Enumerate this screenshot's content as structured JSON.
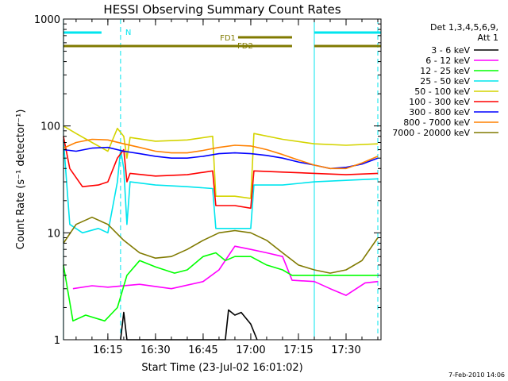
{
  "chart_data": {
    "type": "line",
    "title": "HESSI Observing Summary Count Rates",
    "xlabel": "Start Time (23-Jul-02 16:01:02)",
    "ylabel": "Count Rate (s⁻¹ detector⁻¹)",
    "y_scale": "log",
    "ylim": [
      1,
      1000
    ],
    "xlim": [
      "16:01:02",
      "17:41:00"
    ],
    "x_ticks": [
      "16:15",
      "16:30",
      "16:45",
      "17:00",
      "17:15",
      "17:30"
    ],
    "y_ticks": [
      "1",
      "10",
      "100",
      "1000"
    ],
    "legend_title": [
      "Det 1,3,4,5,6,9,",
      "Att 1"
    ],
    "legend_position": "right",
    "footer": "7-Feb-2010 14:06",
    "flags": [
      {
        "label": "N",
        "color": "#00e5ee",
        "intervals": [
          [
            "16:01",
            "16:13"
          ],
          [
            "17:20",
            "17:41"
          ]
        ]
      },
      {
        "label": "FD1",
        "color": "#807a00",
        "intervals": [
          [
            "16:56",
            "17:13"
          ]
        ]
      },
      {
        "label": "FD2",
        "color": "#807a00",
        "intervals": [
          [
            "16:01",
            "17:13"
          ],
          [
            "17:20",
            "17:41"
          ]
        ]
      }
    ],
    "vlines_solid": [
      "16:01",
      "17:20"
    ],
    "vlines_dashed": [
      "16:19",
      "17:40"
    ],
    "series": [
      {
        "name": "3 - 6 keV",
        "color": "#000000",
        "points": [
          [
            "16:19",
            1
          ],
          [
            "16:20",
            1.8
          ],
          [
            "16:21",
            1
          ],
          [
            "16:52",
            1
          ],
          [
            "16:53",
            1.9
          ],
          [
            "16:55",
            1.7
          ],
          [
            "16:57",
            1.8
          ],
          [
            "17:00",
            1.4
          ],
          [
            "17:02",
            1
          ]
        ]
      },
      {
        "name": "6 - 12 keV",
        "color": "#ff00ff",
        "points": [
          [
            "16:04",
            3
          ],
          [
            "16:10",
            3.2
          ],
          [
            "16:15",
            3.1
          ],
          [
            "16:25",
            3.3
          ],
          [
            "16:35",
            3
          ],
          [
            "16:45",
            3.5
          ],
          [
            "16:50",
            4.5
          ],
          [
            "16:55",
            7.5
          ],
          [
            "17:00",
            7
          ],
          [
            "17:05",
            6.5
          ],
          [
            "17:10",
            6
          ],
          [
            "17:13",
            3.6
          ],
          [
            "17:20",
            3.5
          ],
          [
            "17:25",
            3
          ],
          [
            "17:30",
            2.6
          ],
          [
            "17:36",
            3.4
          ],
          [
            "17:40",
            3.5
          ]
        ]
      },
      {
        "name": "12 - 25 keV",
        "color": "#00ff00",
        "points": [
          [
            "16:01",
            5
          ],
          [
            "16:04",
            1.5
          ],
          [
            "16:08",
            1.7
          ],
          [
            "16:14",
            1.5
          ],
          [
            "16:18",
            2
          ],
          [
            "16:21",
            4
          ],
          [
            "16:25",
            5.5
          ],
          [
            "16:30",
            4.8
          ],
          [
            "16:36",
            4.2
          ],
          [
            "16:40",
            4.5
          ],
          [
            "16:45",
            6
          ],
          [
            "16:49",
            6.5
          ],
          [
            "16:52",
            5.5
          ],
          [
            "16:55",
            6
          ],
          [
            "17:00",
            6
          ],
          [
            "17:05",
            5
          ],
          [
            "17:10",
            4.5
          ],
          [
            "17:13",
            4
          ],
          [
            "17:20",
            4
          ],
          [
            "17:30",
            4
          ],
          [
            "17:40",
            4
          ]
        ]
      },
      {
        "name": "25 - 50 keV",
        "color": "#00e5ee",
        "points": [
          [
            "16:01",
            75
          ],
          [
            "16:03",
            12
          ],
          [
            "16:07",
            10
          ],
          [
            "16:12",
            11
          ],
          [
            "16:15",
            10
          ],
          [
            "16:18",
            30
          ],
          [
            "16:19",
            60
          ],
          [
            "16:20",
            40
          ],
          [
            "16:21",
            12
          ],
          [
            "16:22",
            30
          ],
          [
            "16:30",
            28
          ],
          [
            "16:40",
            27
          ],
          [
            "16:48",
            26
          ],
          [
            "16:49",
            11
          ],
          [
            "16:55",
            11
          ],
          [
            "17:00",
            11
          ],
          [
            "17:01",
            28
          ],
          [
            "17:10",
            28
          ],
          [
            "17:20",
            30
          ],
          [
            "17:30",
            31
          ],
          [
            "17:40",
            32
          ]
        ]
      },
      {
        "name": "50 - 100 keV",
        "color": "#d4d400",
        "points": [
          [
            "16:01",
            100
          ],
          [
            "16:05",
            85
          ],
          [
            "16:10",
            70
          ],
          [
            "16:15",
            58
          ],
          [
            "16:18",
            95
          ],
          [
            "16:20",
            80
          ],
          [
            "16:21",
            50
          ],
          [
            "16:22",
            78
          ],
          [
            "16:30",
            72
          ],
          [
            "16:40",
            74
          ],
          [
            "16:48",
            80
          ],
          [
            "16:49",
            22
          ],
          [
            "16:55",
            22
          ],
          [
            "17:00",
            21
          ],
          [
            "17:01",
            85
          ],
          [
            "17:10",
            75
          ],
          [
            "17:20",
            68
          ],
          [
            "17:30",
            66
          ],
          [
            "17:40",
            68
          ]
        ]
      },
      {
        "name": "100 - 300 keV",
        "color": "#ff0000",
        "points": [
          [
            "16:01",
            80
          ],
          [
            "16:03",
            40
          ],
          [
            "16:07",
            27
          ],
          [
            "16:12",
            28
          ],
          [
            "16:15",
            30
          ],
          [
            "16:18",
            50
          ],
          [
            "16:20",
            60
          ],
          [
            "16:21",
            30
          ],
          [
            "16:22",
            36
          ],
          [
            "16:30",
            34
          ],
          [
            "16:40",
            35
          ],
          [
            "16:48",
            38
          ],
          [
            "16:49",
            18
          ],
          [
            "16:55",
            18
          ],
          [
            "17:00",
            17
          ],
          [
            "17:01",
            38
          ],
          [
            "17:10",
            37
          ],
          [
            "17:20",
            36
          ],
          [
            "17:30",
            35
          ],
          [
            "17:40",
            36
          ]
        ]
      },
      {
        "name": "300 - 800 keV",
        "color": "#0000ff",
        "points": [
          [
            "16:01",
            60
          ],
          [
            "16:05",
            58
          ],
          [
            "16:10",
            62
          ],
          [
            "16:15",
            63
          ],
          [
            "16:20",
            58
          ],
          [
            "16:25",
            55
          ],
          [
            "16:30",
            52
          ],
          [
            "16:35",
            50
          ],
          [
            "16:40",
            50
          ],
          [
            "16:45",
            52
          ],
          [
            "16:50",
            55
          ],
          [
            "16:55",
            56
          ],
          [
            "17:00",
            55
          ],
          [
            "17:05",
            53
          ],
          [
            "17:10",
            50
          ],
          [
            "17:15",
            46
          ],
          [
            "17:20",
            43
          ],
          [
            "17:25",
            40
          ],
          [
            "17:30",
            41
          ],
          [
            "17:35",
            44
          ],
          [
            "17:40",
            50
          ]
        ]
      },
      {
        "name": "800 - 7000 keV",
        "color": "#ff8000",
        "points": [
          [
            "16:01",
            62
          ],
          [
            "16:05",
            70
          ],
          [
            "16:10",
            75
          ],
          [
            "16:15",
            74
          ],
          [
            "16:20",
            68
          ],
          [
            "16:25",
            63
          ],
          [
            "16:30",
            58
          ],
          [
            "16:35",
            56
          ],
          [
            "16:40",
            56
          ],
          [
            "16:45",
            59
          ],
          [
            "16:50",
            63
          ],
          [
            "16:55",
            66
          ],
          [
            "17:00",
            65
          ],
          [
            "17:05",
            60
          ],
          [
            "17:10",
            54
          ],
          [
            "17:15",
            48
          ],
          [
            "17:20",
            43
          ],
          [
            "17:25",
            40
          ],
          [
            "17:30",
            40
          ],
          [
            "17:35",
            45
          ],
          [
            "17:40",
            52
          ]
        ]
      },
      {
        "name": "7000 - 20000 keV",
        "color": "#807a00",
        "points": [
          [
            "16:01",
            8
          ],
          [
            "16:05",
            12
          ],
          [
            "16:10",
            14
          ],
          [
            "16:15",
            12
          ],
          [
            "16:20",
            8.5
          ],
          [
            "16:25",
            6.5
          ],
          [
            "16:30",
            5.8
          ],
          [
            "16:35",
            6
          ],
          [
            "16:40",
            7
          ],
          [
            "16:45",
            8.5
          ],
          [
            "16:50",
            10
          ],
          [
            "16:55",
            10.5
          ],
          [
            "17:00",
            10
          ],
          [
            "17:05",
            8.5
          ],
          [
            "17:10",
            6.5
          ],
          [
            "17:15",
            5
          ],
          [
            "17:20",
            4.5
          ],
          [
            "17:25",
            4.2
          ],
          [
            "17:30",
            4.5
          ],
          [
            "17:35",
            5.5
          ],
          [
            "17:40",
            9
          ]
        ]
      }
    ]
  }
}
